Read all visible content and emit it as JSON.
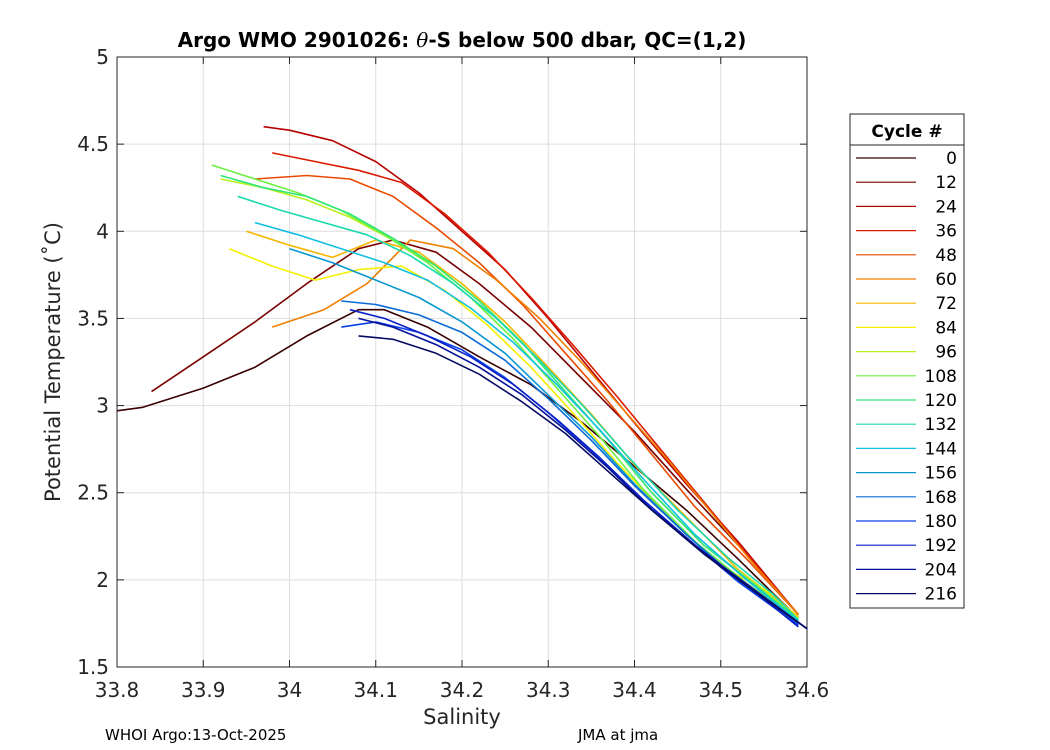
{
  "chart_data": {
    "type": "line",
    "title": "Argo WMO 2901026: θ-S below 500 dbar,  QC=(1,2)",
    "title_parts": {
      "prefix": "Argo WMO 2901026: ",
      "theta": "θ",
      "suffix": "-S below 500 dbar,  QC=(1,2)"
    },
    "xlabel": "Salinity",
    "ylabel": "Potential Temperature (˚C)",
    "xlim": [
      33.8,
      34.6
    ],
    "ylim": [
      1.5,
      5
    ],
    "xticks": [
      33.8,
      33.9,
      34.0,
      34.1,
      34.2,
      34.3,
      34.4,
      34.5,
      34.6
    ],
    "xtick_labels": [
      "33.8",
      "33.9",
      "34",
      "34.1",
      "34.2",
      "34.3",
      "34.4",
      "34.5",
      "34.6"
    ],
    "yticks": [
      1.5,
      2,
      2.5,
      3,
      3.5,
      4,
      4.5,
      5
    ],
    "ytick_labels": [
      "1.5",
      "2",
      "2.5",
      "3",
      "3.5",
      "4",
      "4.5",
      "5"
    ],
    "grid": true,
    "legend": {
      "title": "Cycle #",
      "position": "right",
      "entries": [
        {
          "label": "0",
          "color": "#3a0000"
        },
        {
          "label": "12",
          "color": "#7a0000"
        },
        {
          "label": "24",
          "color": "#b80000"
        },
        {
          "label": "36",
          "color": "#dd1a00"
        },
        {
          "label": "48",
          "color": "#ea4a00"
        },
        {
          "label": "60",
          "color": "#f08000"
        },
        {
          "label": "72",
          "color": "#f5b500"
        },
        {
          "label": "84",
          "color": "#f5f000"
        },
        {
          "label": "96",
          "color": "#b8f020"
        },
        {
          "label": "108",
          "color": "#6cf040"
        },
        {
          "label": "120",
          "color": "#30e878"
        },
        {
          "label": "132",
          "color": "#18d8b0"
        },
        {
          "label": "144",
          "color": "#10c0e0"
        },
        {
          "label": "156",
          "color": "#0898d0"
        },
        {
          "label": "168",
          "color": "#0a6cd8"
        },
        {
          "label": "180",
          "color": "#0a40e8"
        },
        {
          "label": "192",
          "color": "#0a20c8"
        },
        {
          "label": "204",
          "color": "#061098"
        },
        {
          "label": "216",
          "color": "#040a60"
        }
      ]
    },
    "series": [
      {
        "name": "0",
        "x": [
          33.8,
          33.83,
          33.9,
          33.96,
          34.02,
          34.08,
          34.11,
          34.16,
          34.22,
          34.28,
          34.34,
          34.4,
          34.46,
          34.52,
          34.59
        ],
        "y": [
          2.97,
          2.99,
          3.1,
          3.22,
          3.4,
          3.55,
          3.55,
          3.45,
          3.28,
          3.12,
          2.9,
          2.65,
          2.4,
          2.12,
          1.78
        ]
      },
      {
        "name": "12",
        "x": [
          33.84,
          33.9,
          33.96,
          34.02,
          34.08,
          34.12,
          34.17,
          34.22,
          34.28,
          34.34,
          34.4,
          34.46,
          34.52,
          34.59
        ],
        "y": [
          3.08,
          3.28,
          3.48,
          3.7,
          3.9,
          3.95,
          3.88,
          3.7,
          3.45,
          3.15,
          2.85,
          2.52,
          2.2,
          1.8
        ]
      },
      {
        "name": "24",
        "x": [
          33.97,
          34.0,
          34.05,
          34.1,
          34.15,
          34.2,
          34.25,
          34.3,
          34.35,
          34.4,
          34.46,
          34.52,
          34.59
        ],
        "y": [
          4.6,
          4.58,
          4.52,
          4.4,
          4.22,
          4.0,
          3.78,
          3.5,
          3.2,
          2.9,
          2.55,
          2.22,
          1.8
        ]
      },
      {
        "name": "36",
        "x": [
          33.98,
          34.03,
          34.08,
          34.13,
          34.18,
          34.23,
          34.28,
          34.33,
          34.38,
          34.43,
          34.48,
          34.53,
          34.59
        ],
        "y": [
          4.45,
          4.4,
          4.35,
          4.28,
          4.1,
          3.88,
          3.62,
          3.34,
          3.05,
          2.75,
          2.45,
          2.15,
          1.8
        ]
      },
      {
        "name": "48",
        "x": [
          33.96,
          34.02,
          34.07,
          34.12,
          34.17,
          34.22,
          34.27,
          34.32,
          34.37,
          34.42,
          34.47,
          34.53,
          34.59
        ],
        "y": [
          4.3,
          4.32,
          4.3,
          4.2,
          4.02,
          3.82,
          3.58,
          3.3,
          3.02,
          2.72,
          2.42,
          2.12,
          1.8
        ]
      },
      {
        "name": "60",
        "x": [
          33.98,
          34.04,
          34.09,
          34.14,
          34.19,
          34.24,
          34.29,
          34.34,
          34.39,
          34.44,
          34.49,
          34.54,
          34.59
        ],
        "y": [
          3.45,
          3.55,
          3.7,
          3.95,
          3.9,
          3.72,
          3.5,
          3.24,
          2.96,
          2.68,
          2.38,
          2.08,
          1.8
        ]
      },
      {
        "name": "72",
        "x": [
          33.95,
          34.0,
          34.05,
          34.1,
          34.15,
          34.2,
          34.25,
          34.3,
          34.35,
          34.4,
          34.46,
          34.52,
          34.59
        ],
        "y": [
          4.0,
          3.92,
          3.85,
          3.95,
          3.88,
          3.7,
          3.48,
          3.22,
          2.95,
          2.66,
          2.36,
          2.06,
          1.79
        ]
      },
      {
        "name": "84",
        "x": [
          33.93,
          33.98,
          34.03,
          34.08,
          34.13,
          34.18,
          34.23,
          34.28,
          34.33,
          34.38,
          34.44,
          34.5,
          34.56,
          34.59
        ],
        "y": [
          3.9,
          3.8,
          3.72,
          3.78,
          3.8,
          3.66,
          3.46,
          3.22,
          2.95,
          2.67,
          2.36,
          2.08,
          1.92,
          1.78
        ]
      },
      {
        "name": "96",
        "x": [
          33.92,
          33.97,
          34.02,
          34.07,
          34.12,
          34.17,
          34.22,
          34.27,
          34.32,
          34.37,
          34.42,
          34.48,
          34.54,
          34.59
        ],
        "y": [
          4.3,
          4.25,
          4.18,
          4.08,
          3.95,
          3.8,
          3.6,
          3.36,
          3.08,
          2.8,
          2.5,
          2.2,
          1.98,
          1.78
        ]
      },
      {
        "name": "108",
        "x": [
          33.91,
          33.96,
          34.01,
          34.06,
          34.11,
          34.16,
          34.21,
          34.26,
          34.31,
          34.36,
          34.41,
          34.47,
          34.53,
          34.59
        ],
        "y": [
          4.38,
          4.3,
          4.22,
          4.12,
          3.98,
          3.82,
          3.62,
          3.38,
          3.1,
          2.82,
          2.52,
          2.22,
          1.98,
          1.77
        ]
      },
      {
        "name": "120",
        "x": [
          33.92,
          33.97,
          34.02,
          34.07,
          34.12,
          34.17,
          34.22,
          34.27,
          34.32,
          34.37,
          34.42,
          34.48,
          34.54,
          34.59
        ],
        "y": [
          4.32,
          4.25,
          4.2,
          4.1,
          3.96,
          3.8,
          3.6,
          3.36,
          3.08,
          2.8,
          2.5,
          2.2,
          1.97,
          1.77
        ]
      },
      {
        "name": "132",
        "x": [
          33.94,
          33.99,
          34.04,
          34.09,
          34.14,
          34.19,
          34.24,
          34.29,
          34.34,
          34.39,
          34.45,
          34.51,
          34.56,
          34.59
        ],
        "y": [
          4.2,
          4.12,
          4.05,
          3.98,
          3.86,
          3.7,
          3.5,
          3.26,
          3.0,
          2.72,
          2.4,
          2.12,
          1.92,
          1.77
        ]
      },
      {
        "name": "144",
        "x": [
          33.96,
          34.01,
          34.06,
          34.11,
          34.16,
          34.21,
          34.26,
          34.31,
          34.36,
          34.41,
          34.47,
          34.53,
          34.59
        ],
        "y": [
          4.05,
          3.98,
          3.9,
          3.82,
          3.72,
          3.56,
          3.36,
          3.12,
          2.86,
          2.58,
          2.26,
          2.0,
          1.76
        ]
      },
      {
        "name": "156",
        "x": [
          34.0,
          34.05,
          34.1,
          34.15,
          34.2,
          34.25,
          34.3,
          34.35,
          34.4,
          34.46,
          34.52,
          34.59
        ],
        "y": [
          3.9,
          3.82,
          3.72,
          3.62,
          3.48,
          3.3,
          3.06,
          2.82,
          2.55,
          2.26,
          2.0,
          1.75
        ]
      },
      {
        "name": "168",
        "x": [
          34.06,
          34.1,
          34.15,
          34.2,
          34.25,
          34.3,
          34.35,
          34.4,
          34.46,
          34.52,
          34.59
        ],
        "y": [
          3.6,
          3.58,
          3.52,
          3.42,
          3.26,
          3.04,
          2.8,
          2.54,
          2.26,
          2.0,
          1.75
        ]
      },
      {
        "name": "180",
        "x": [
          34.06,
          34.1,
          34.15,
          34.2,
          34.25,
          34.3,
          34.35,
          34.4,
          34.46,
          34.52,
          34.59
        ],
        "y": [
          3.45,
          3.48,
          3.42,
          3.32,
          3.16,
          2.96,
          2.74,
          2.5,
          2.24,
          1.99,
          1.74
        ]
      },
      {
        "name": "192",
        "x": [
          34.07,
          34.11,
          34.16,
          34.21,
          34.26,
          34.31,
          34.36,
          34.41,
          34.47,
          34.53,
          34.59
        ],
        "y": [
          3.55,
          3.5,
          3.4,
          3.28,
          3.12,
          2.92,
          2.7,
          2.46,
          2.2,
          1.97,
          1.73
        ]
      },
      {
        "name": "204",
        "x": [
          34.08,
          34.12,
          34.17,
          34.22,
          34.27,
          34.32,
          34.37,
          34.42,
          34.48,
          34.54,
          34.6
        ],
        "y": [
          3.5,
          3.45,
          3.35,
          3.22,
          3.06,
          2.86,
          2.64,
          2.4,
          2.16,
          1.94,
          1.72
        ]
      },
      {
        "name": "216",
        "x": [
          34.08,
          34.12,
          34.17,
          34.22,
          34.27,
          34.32,
          34.37,
          34.42,
          34.48,
          34.54,
          34.6
        ],
        "y": [
          3.4,
          3.38,
          3.3,
          3.18,
          3.02,
          2.84,
          2.62,
          2.4,
          2.15,
          1.93,
          1.72
        ]
      }
    ]
  },
  "footer": {
    "left": "WHOI Argo:13-Oct-2025",
    "right": "JMA at jma"
  }
}
